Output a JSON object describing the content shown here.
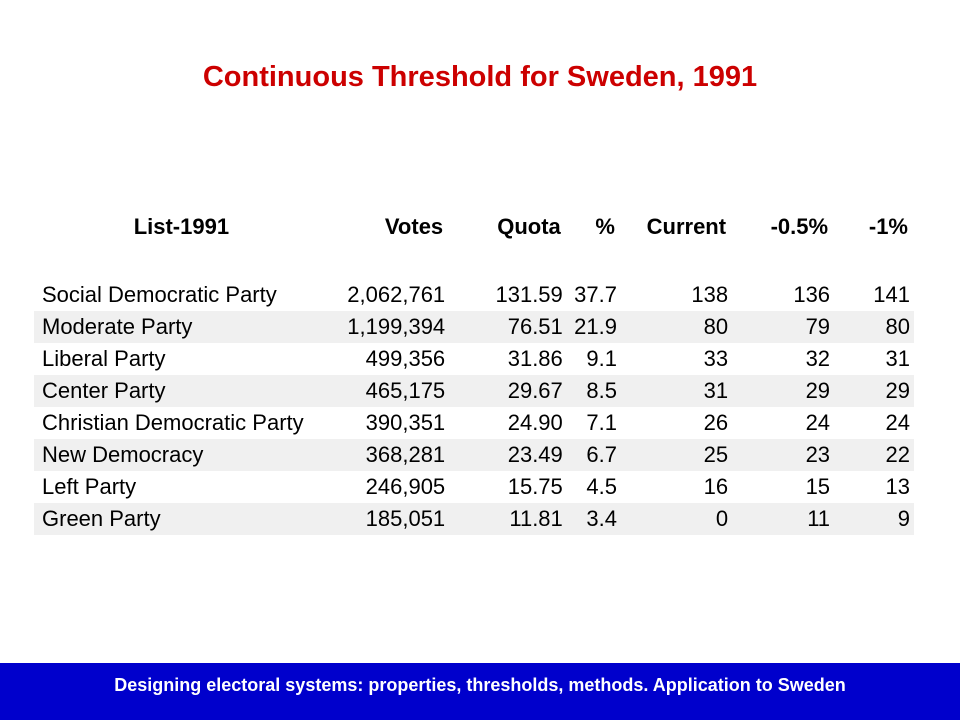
{
  "slide": {
    "title": "Continuous Threshold for Sweden, 1991",
    "footer": "Designing electoral systems: properties, thresholds, methods. Application to Sweden"
  },
  "colors": {
    "title": "#cc0000",
    "footer_bg": "#0000cc",
    "footer_text": "#ffffff",
    "row_shade": "#f0f0f0"
  },
  "table": {
    "headers": [
      "List-1991",
      "Votes",
      "Quota",
      "%",
      "Current",
      "-0.5%",
      "-1%"
    ],
    "rows": [
      {
        "party": "Social Democratic Party",
        "votes": "2,062,761",
        "quota": "131.59",
        "pct": "37.7",
        "current": "138",
        "minus_half": "136",
        "minus_one": "141"
      },
      {
        "party": "Moderate Party",
        "votes": "1,199,394",
        "quota": "76.51",
        "pct": "21.9",
        "current": "80",
        "minus_half": "79",
        "minus_one": "80"
      },
      {
        "party": "Liberal Party",
        "votes": "499,356",
        "quota": "31.86",
        "pct": "9.1",
        "current": "33",
        "minus_half": "32",
        "minus_one": "31"
      },
      {
        "party": "Center Party",
        "votes": "465,175",
        "quota": "29.67",
        "pct": "8.5",
        "current": "31",
        "minus_half": "29",
        "minus_one": "29"
      },
      {
        "party": "Christian Democratic Party",
        "votes": "390,351",
        "quota": "24.90",
        "pct": "7.1",
        "current": "26",
        "minus_half": "24",
        "minus_one": "24"
      },
      {
        "party": "New Democracy",
        "votes": "368,281",
        "quota": "23.49",
        "pct": "6.7",
        "current": "25",
        "minus_half": "23",
        "minus_one": "22"
      },
      {
        "party": "Left Party",
        "votes": "246,905",
        "quota": "15.75",
        "pct": "4.5",
        "current": "16",
        "minus_half": "15",
        "minus_one": "13"
      },
      {
        "party": "Green Party",
        "votes": "185,051",
        "quota": "11.81",
        "pct": "3.4",
        "current": "0",
        "minus_half": "11",
        "minus_one": "9"
      }
    ]
  }
}
